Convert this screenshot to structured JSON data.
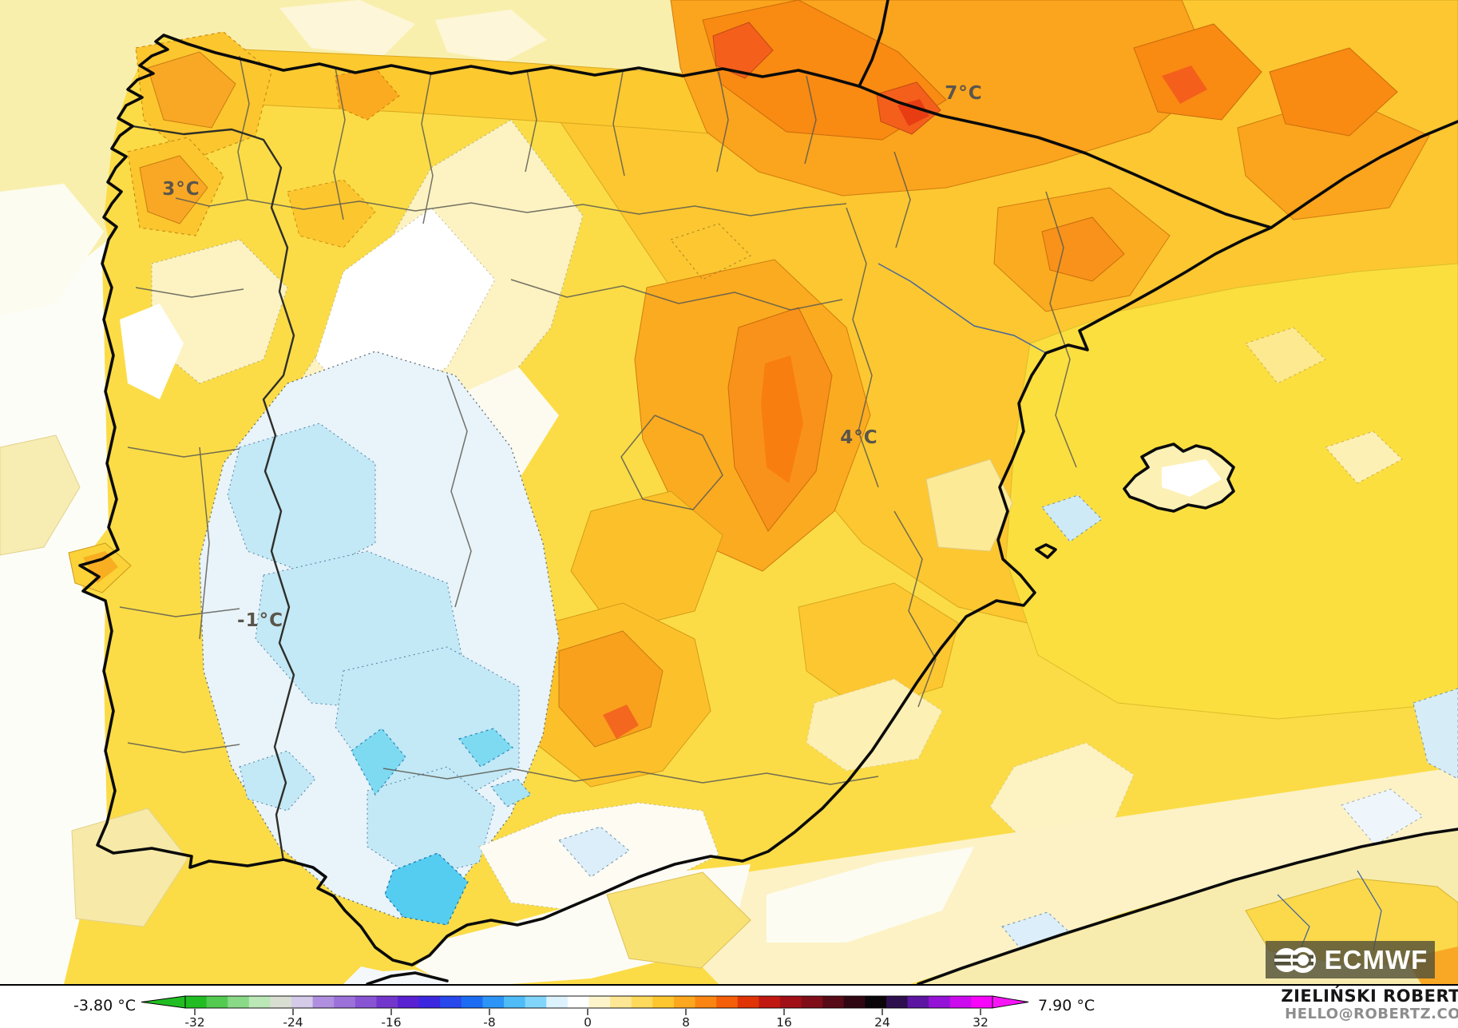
{
  "map": {
    "labels": [
      {
        "text": "3°C"
      },
      {
        "text": "7°C"
      },
      {
        "text": "4°C"
      },
      {
        "text": "-1°C"
      }
    ]
  },
  "colorbar": {
    "min_label": "-3.80 °C",
    "max_label": "7.90 °C",
    "ticks": [
      "-32",
      "-24",
      "-16",
      "-8",
      "0",
      "8",
      "16",
      "24",
      "32"
    ],
    "arrow_left_color": "#21bd22",
    "arrow_right_color": "#f715f8",
    "colors": [
      "#21bd22",
      "#53ca50",
      "#8ad987",
      "#bce8b8",
      "#d9ded2",
      "#d5cae8",
      "#b08fe0",
      "#9c71da",
      "#8854d3",
      "#7336cc",
      "#5a21d2",
      "#3c27e0",
      "#2848ec",
      "#1c6cf3",
      "#2b94f6",
      "#4fbcf8",
      "#82d5fa",
      "#dcf3fd",
      "#ffffff",
      "#fdf4cb",
      "#fde795",
      "#fdd95c",
      "#fdc62f",
      "#fda71e",
      "#fb8512",
      "#f55f09",
      "#e03407",
      "#c11812",
      "#a11017",
      "#800e19",
      "#570b16",
      "#2f0712",
      "#0a0508",
      "#2d0f4e",
      "#5c16a2",
      "#9413d6",
      "#cb0bee",
      "#f705fb"
    ]
  },
  "branding": {
    "logo_text": "ECMWF"
  },
  "attribution": {
    "name": "ZIELIŃSKI ROBERT",
    "email": "HELLO@ROBERTZ.CO"
  }
}
